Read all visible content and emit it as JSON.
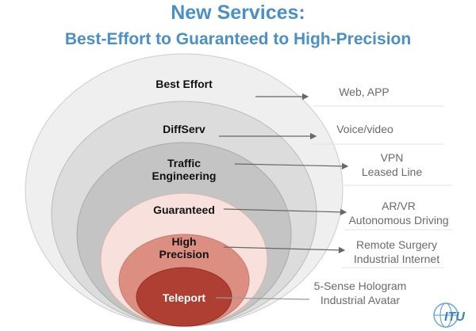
{
  "title": "New Services:",
  "subtitle": "Best-Effort to Guaranteed to High-Precision",
  "levels": [
    {
      "label": "Best Effort",
      "services": [
        "Web, APP"
      ],
      "fill": "#efefef"
    },
    {
      "label": "DiffServ",
      "services": [
        "Voice/video"
      ],
      "fill": "#dcdcdc"
    },
    {
      "label": "Traffic Engineering",
      "services": [
        "VPN",
        "Leased Line"
      ],
      "fill": "#c4c4c4"
    },
    {
      "label": "Guaranteed",
      "services": [
        "AR/VR",
        "Autonomous Driving"
      ],
      "fill": "#f8e1dc"
    },
    {
      "label": "High Precision",
      "services": [
        "Remote Surgery",
        "Industrial Internet"
      ],
      "fill": "#dc8e80"
    },
    {
      "label": "Teleport",
      "services": [
        "5-Sense Hologram",
        "Industrial Avatar"
      ],
      "fill": "#b03f33"
    }
  ],
  "colors": {
    "title": "#4a90c8",
    "arrow": "#666666"
  },
  "logo": {
    "icon": "itu-logo",
    "text": "ITU"
  }
}
